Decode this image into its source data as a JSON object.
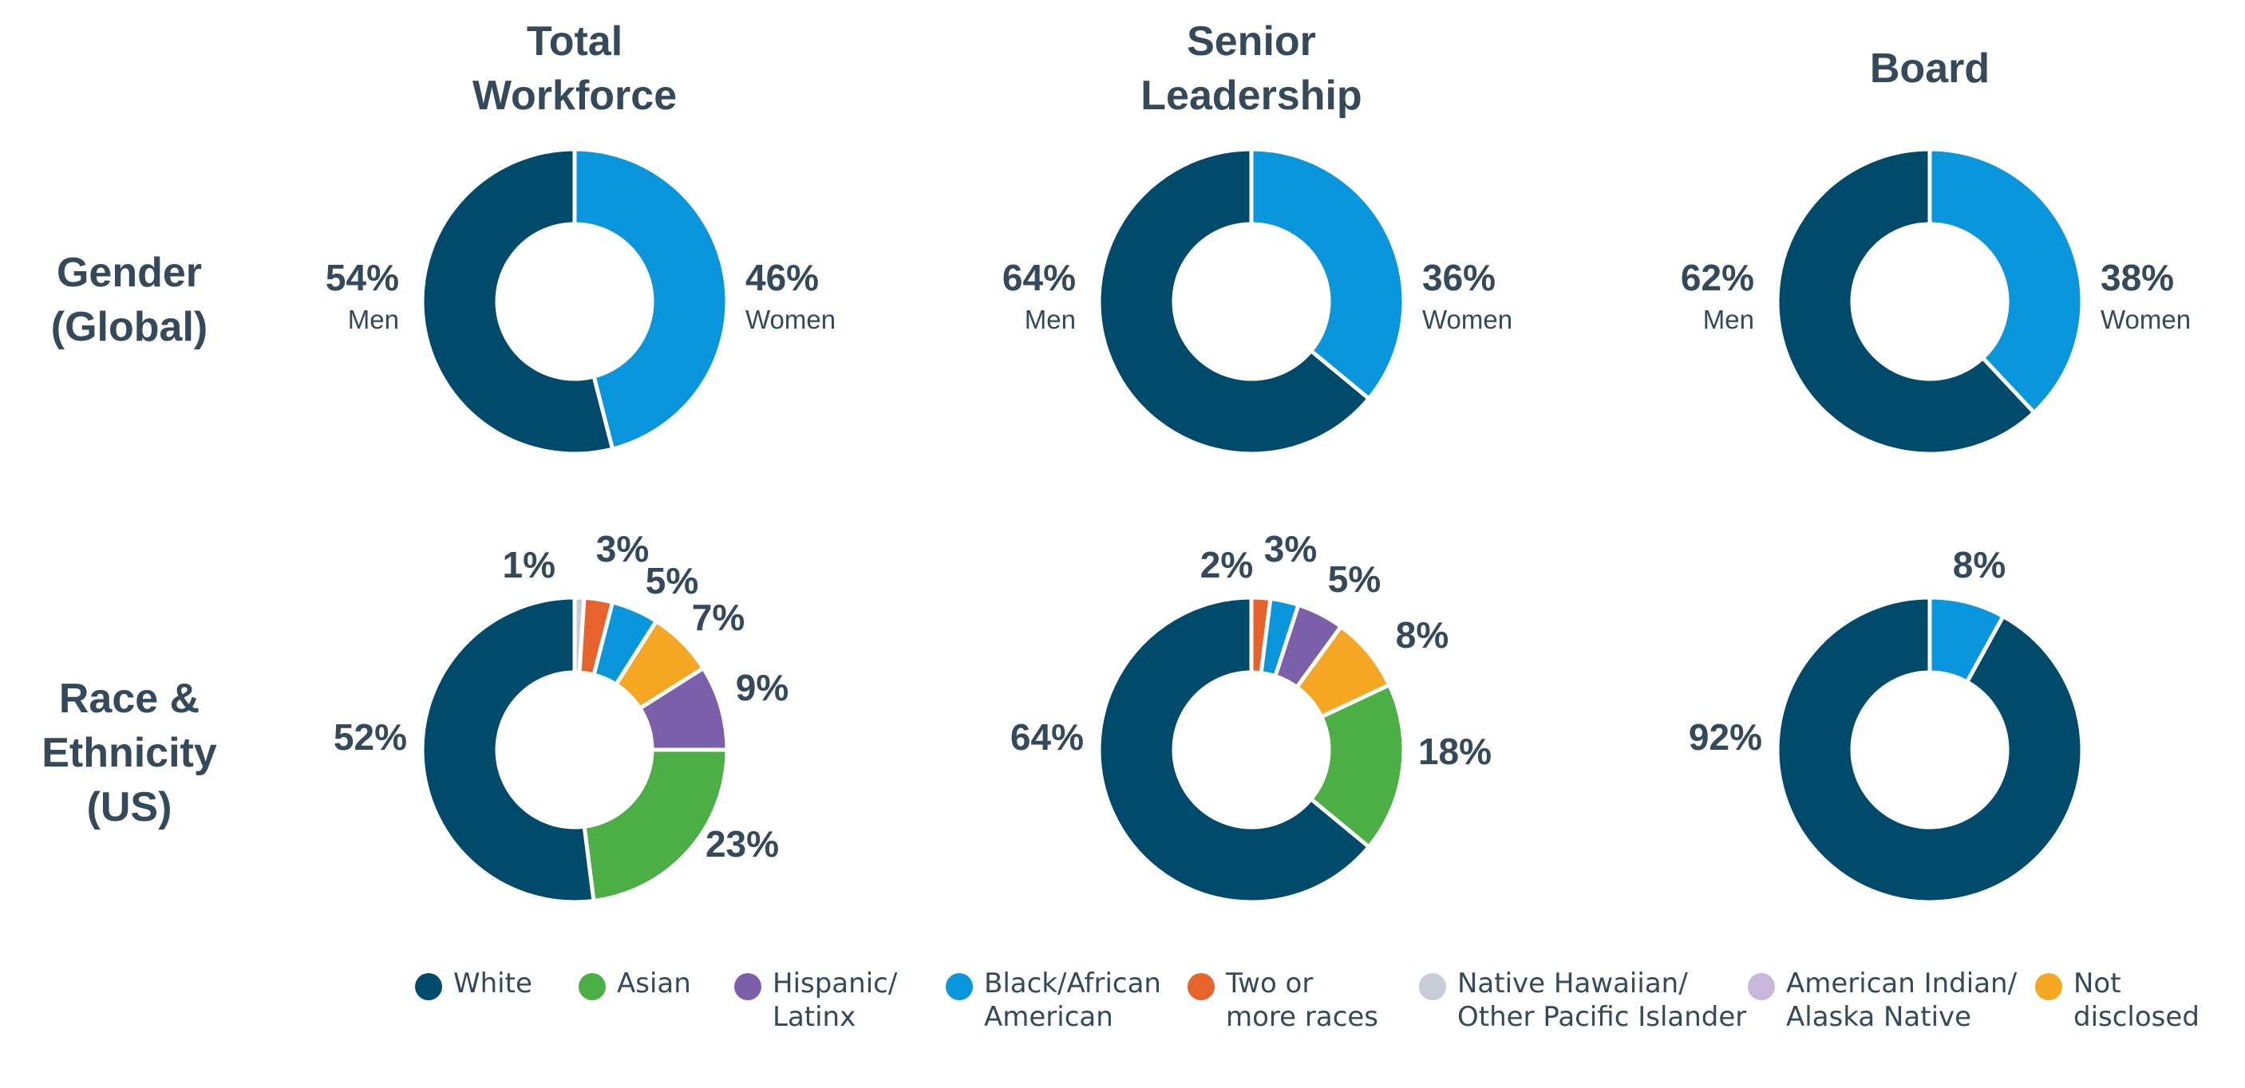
{
  "columns": [
    "Total\nWorkforce",
    "Senior\nLeadership",
    "Board"
  ],
  "rows": [
    "Gender\n(Global)",
    "Race &\nEthnicity\n(US)"
  ],
  "colors": {
    "White": "#004a6b",
    "Asian": "#4caf46",
    "Hispanic/Latinx": "#7c5fab",
    "Black/African American": "#0a96dc",
    "Two or more races": "#e8632b",
    "Native Hawaiian/Other Pacific Islander": "#c8ccd6",
    "American Indian/Alaska Native": "#c9b6dd",
    "Not disclosed": "#f5a623",
    "Men": "#004a6b",
    "Women": "#0a96dc"
  },
  "legend": [
    {
      "key": "White",
      "label": "White"
    },
    {
      "key": "Asian",
      "label": "Asian"
    },
    {
      "key": "Hispanic/Latinx",
      "label": "Hispanic/\nLatinx"
    },
    {
      "key": "Black/African American",
      "label": "Black/African\nAmerican"
    },
    {
      "key": "Two or more races",
      "label": "Two or\nmore races"
    },
    {
      "key": "Native Hawaiian/Other Pacific Islander",
      "label": "Native Hawaiian/\nOther Pacific Islander"
    },
    {
      "key": "American Indian/Alaska Native",
      "label": "American Indian/\nAlaska Native"
    },
    {
      "key": "Not disclosed",
      "label": "Not\ndisclosed"
    }
  ],
  "chart_data": [
    {
      "type": "pie",
      "title": "Total Workforce — Gender (Global)",
      "slices": [
        {
          "name": "Women",
          "value": 46,
          "label": "46%",
          "sublabel": "Women"
        },
        {
          "name": "Men",
          "value": 54,
          "label": "54%",
          "sublabel": "Men"
        }
      ]
    },
    {
      "type": "pie",
      "title": "Senior Leadership — Gender (Global)",
      "slices": [
        {
          "name": "Women",
          "value": 36,
          "label": "36%",
          "sublabel": "Women"
        },
        {
          "name": "Men",
          "value": 64,
          "label": "64%",
          "sublabel": "Men"
        }
      ]
    },
    {
      "type": "pie",
      "title": "Board — Gender (Global)",
      "slices": [
        {
          "name": "Women",
          "value": 38,
          "label": "38%",
          "sublabel": "Women"
        },
        {
          "name": "Men",
          "value": 62,
          "label": "62%",
          "sublabel": "Men"
        }
      ]
    },
    {
      "type": "pie",
      "title": "Total Workforce — Race & Ethnicity (US)",
      "slices": [
        {
          "name": "Native Hawaiian/Other Pacific Islander",
          "value": 1,
          "label": "1%"
        },
        {
          "name": "Two or more races",
          "value": 3,
          "label": "3%"
        },
        {
          "name": "Black/African American",
          "value": 5,
          "label": "5%"
        },
        {
          "name": "Not disclosed",
          "value": 7,
          "label": "7%"
        },
        {
          "name": "Hispanic/Latinx",
          "value": 9,
          "label": "9%"
        },
        {
          "name": "Asian",
          "value": 23,
          "label": "23%"
        },
        {
          "name": "White",
          "value": 52,
          "label": "52%"
        }
      ]
    },
    {
      "type": "pie",
      "title": "Senior Leadership — Race & Ethnicity (US)",
      "slices": [
        {
          "name": "Two or more races",
          "value": 2,
          "label": "2%"
        },
        {
          "name": "Black/African American",
          "value": 3,
          "label": "3%"
        },
        {
          "name": "Hispanic/Latinx",
          "value": 5,
          "label": "5%"
        },
        {
          "name": "Not disclosed",
          "value": 8,
          "label": "8%"
        },
        {
          "name": "Asian",
          "value": 18,
          "label": "18%"
        },
        {
          "name": "White",
          "value": 64,
          "label": "64%"
        }
      ]
    },
    {
      "type": "pie",
      "title": "Board — Race & Ethnicity (US)",
      "slices": [
        {
          "name": "Black/African American",
          "value": 8,
          "label": "8%"
        },
        {
          "name": "White",
          "value": 92,
          "label": "92%"
        }
      ]
    }
  ]
}
